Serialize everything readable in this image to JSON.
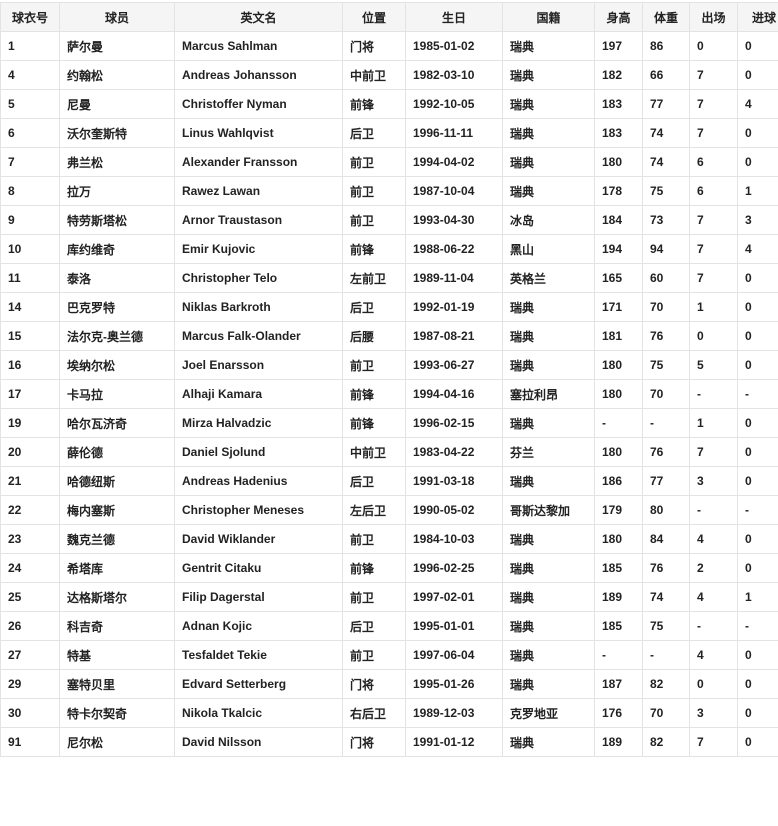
{
  "table": {
    "headers": [
      "球衣号",
      "球员",
      "英文名",
      "位置",
      "生日",
      "国籍",
      "身高",
      "体重",
      "出场",
      "进球"
    ],
    "rows": [
      [
        "1",
        "萨尔曼",
        "Marcus Sahlman",
        "门将",
        "1985-01-02",
        "瑞典",
        "197",
        "86",
        "0",
        "0"
      ],
      [
        "4",
        "约翰松",
        "Andreas Johansson",
        "中前卫",
        "1982-03-10",
        "瑞典",
        "182",
        "66",
        "7",
        "0"
      ],
      [
        "5",
        "尼曼",
        "Christoffer Nyman",
        "前锋",
        "1992-10-05",
        "瑞典",
        "183",
        "77",
        "7",
        "4"
      ],
      [
        "6",
        "沃尔奎斯特",
        "Linus Wahlqvist",
        "后卫",
        "1996-11-11",
        "瑞典",
        "183",
        "74",
        "7",
        "0"
      ],
      [
        "7",
        "弗兰松",
        "Alexander Fransson",
        "前卫",
        "1994-04-02",
        "瑞典",
        "180",
        "74",
        "6",
        "0"
      ],
      [
        "8",
        "拉万",
        "Rawez Lawan",
        "前卫",
        "1987-10-04",
        "瑞典",
        "178",
        "75",
        "6",
        "1"
      ],
      [
        "9",
        "特劳斯塔松",
        "Arnor Traustason",
        "前卫",
        "1993-04-30",
        "冰岛",
        "184",
        "73",
        "7",
        "3"
      ],
      [
        "10",
        "库约维奇",
        "Emir Kujovic",
        "前锋",
        "1988-06-22",
        "黑山",
        "194",
        "94",
        "7",
        "4"
      ],
      [
        "11",
        "泰洛",
        "Christopher Telo",
        "左前卫",
        "1989-11-04",
        "英格兰",
        "165",
        "60",
        "7",
        "0"
      ],
      [
        "14",
        "巴克罗特",
        "Niklas Barkroth",
        "后卫",
        "1992-01-19",
        "瑞典",
        "171",
        "70",
        "1",
        "0"
      ],
      [
        "15",
        "法尔克-奥兰德",
        "Marcus Falk-Olander",
        "后腰",
        "1987-08-21",
        "瑞典",
        "181",
        "76",
        "0",
        "0"
      ],
      [
        "16",
        "埃纳尔松",
        "Joel Enarsson",
        "前卫",
        "1993-06-27",
        "瑞典",
        "180",
        "75",
        "5",
        "0"
      ],
      [
        "17",
        "卡马拉",
        "Alhaji Kamara",
        "前锋",
        "1994-04-16",
        "塞拉利昂",
        "180",
        "70",
        "-",
        "-"
      ],
      [
        "19",
        "哈尔瓦济奇",
        "Mirza Halvadzic",
        "前锋",
        "1996-02-15",
        "瑞典",
        "-",
        "-",
        "1",
        "0"
      ],
      [
        "20",
        "薛伦德",
        "Daniel Sjolund",
        "中前卫",
        "1983-04-22",
        "芬兰",
        "180",
        "76",
        "7",
        "0"
      ],
      [
        "21",
        "哈德纽斯",
        "Andreas Hadenius",
        "后卫",
        "1991-03-18",
        "瑞典",
        "186",
        "77",
        "3",
        "0"
      ],
      [
        "22",
        "梅内塞斯",
        "Christopher Meneses",
        "左后卫",
        "1990-05-02",
        "哥斯达黎加",
        "179",
        "80",
        "-",
        "-"
      ],
      [
        "23",
        "魏克兰德",
        "David Wiklander",
        "前卫",
        "1984-10-03",
        "瑞典",
        "180",
        "84",
        "4",
        "0"
      ],
      [
        "24",
        "希塔库",
        "Gentrit Citaku",
        "前锋",
        "1996-02-25",
        "瑞典",
        "185",
        "76",
        "2",
        "0"
      ],
      [
        "25",
        "达格斯塔尔",
        "Filip Dagerstal",
        "前卫",
        "1997-02-01",
        "瑞典",
        "189",
        "74",
        "4",
        "1"
      ],
      [
        "26",
        "科吉奇",
        "Adnan Kojic",
        "后卫",
        "1995-01-01",
        "瑞典",
        "185",
        "75",
        "-",
        "-"
      ],
      [
        "27",
        "特基",
        "Tesfaldet Tekie",
        "前卫",
        "1997-06-04",
        "瑞典",
        "-",
        "-",
        "4",
        "0"
      ],
      [
        "29",
        "塞特贝里",
        "Edvard Setterberg",
        "门将",
        "1995-01-26",
        "瑞典",
        "187",
        "82",
        "0",
        "0"
      ],
      [
        "30",
        "特卡尔契奇",
        "Nikola Tkalcic",
        "右后卫",
        "1989-12-03",
        "克罗地亚",
        "176",
        "70",
        "3",
        "0"
      ],
      [
        "91",
        "尼尔松",
        "David Nilsson",
        "门将",
        "1991-01-12",
        "瑞典",
        "189",
        "82",
        "7",
        "0"
      ]
    ]
  }
}
